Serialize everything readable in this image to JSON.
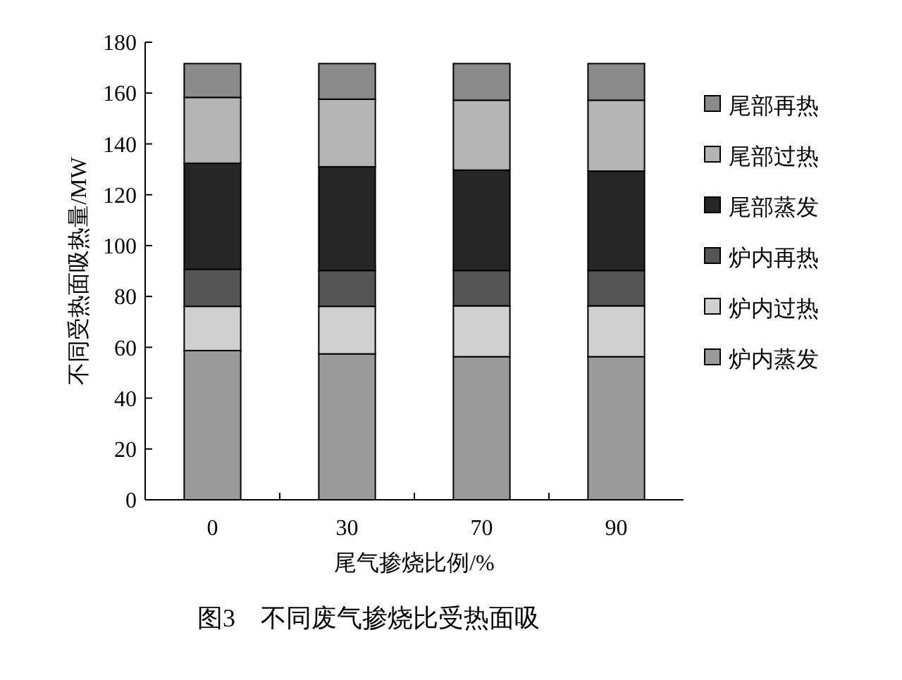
{
  "chart_data": {
    "type": "bar",
    "stacked": true,
    "xlabel": "尾气掺烧比例/%",
    "ylabel": "不同受热面吸热量/MW",
    "annotations": [
      "图3　不同废气掺烧比受热面吸"
    ],
    "categories": [
      "0",
      "30",
      "70",
      "90"
    ],
    "series": [
      {
        "name": "炉内蒸发",
        "color": "#9a9a9a",
        "values": [
          58.7,
          57.4,
          56.3,
          56.3
        ]
      },
      {
        "name": "炉内过热",
        "color": "#d0d0d0",
        "values": [
          17.4,
          18.7,
          20.0,
          20.0
        ]
      },
      {
        "name": "炉内再热",
        "color": "#555555",
        "values": [
          14.6,
          14.1,
          13.9,
          13.9
        ]
      },
      {
        "name": "尾部蒸发",
        "color": "#262626",
        "values": [
          41.7,
          40.8,
          39.5,
          39.1
        ]
      },
      {
        "name": "尾部过热",
        "color": "#b4b4b4",
        "values": [
          25.9,
          26.6,
          27.5,
          27.9
        ]
      },
      {
        "name": "尾部再热",
        "color": "#8a8a8a",
        "values": [
          13.3,
          14.0,
          14.4,
          14.4
        ]
      }
    ],
    "ylim": [
      0,
      180
    ],
    "yticks": [
      0,
      20,
      40,
      60,
      80,
      100,
      120,
      140,
      160,
      180
    ],
    "grid": false,
    "legend": "right"
  }
}
